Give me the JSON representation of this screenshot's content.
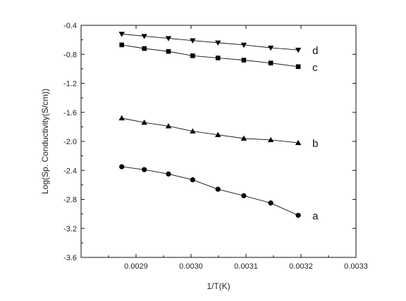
{
  "chart_data": {
    "type": "line",
    "title": "",
    "xlabel": "1/T(K)",
    "ylabel": "Log(Sp. Conductivity(S/cm))",
    "xlim": [
      0.0028,
      0.0033
    ],
    "ylim": [
      -3.6,
      -0.4
    ],
    "xticks": [
      0.0029,
      0.003,
      0.0031,
      0.0032,
      0.0033
    ],
    "xtick_labels": [
      "0.0029",
      "0.0030",
      "0.0031",
      "0.0032",
      "0.0033"
    ],
    "yticks": [
      -0.4,
      -0.8,
      -1.2,
      -1.6,
      -2.0,
      -2.4,
      -2.8,
      -3.2,
      -3.6
    ],
    "ytick_labels": [
      "-0.4",
      "-0.8",
      "-1.2",
      "-1.6",
      "-2.0",
      "-2.4",
      "-2.8",
      "-3.2",
      "-3.6"
    ],
    "grid": false,
    "x": [
      0.002874,
      0.002915,
      0.002959,
      0.003003,
      0.003049,
      0.003096,
      0.003145,
      0.003195
    ],
    "series": [
      {
        "name": "a",
        "marker": "circle",
        "values": [
          -2.35,
          -2.39,
          -2.45,
          -2.53,
          -2.66,
          -2.75,
          -2.85,
          -3.02
        ]
      },
      {
        "name": "b",
        "marker": "triangle-up",
        "values": [
          -1.68,
          -1.74,
          -1.79,
          -1.86,
          -1.91,
          -1.96,
          -1.98,
          -2.02
        ]
      },
      {
        "name": "c",
        "marker": "square",
        "values": [
          -0.67,
          -0.72,
          -0.76,
          -0.82,
          -0.85,
          -0.88,
          -0.92,
          -0.97
        ]
      },
      {
        "name": "d",
        "marker": "triangle-down",
        "values": [
          -0.52,
          -0.55,
          -0.58,
          -0.61,
          -0.64,
          -0.67,
          -0.71,
          -0.74
        ]
      }
    ]
  }
}
